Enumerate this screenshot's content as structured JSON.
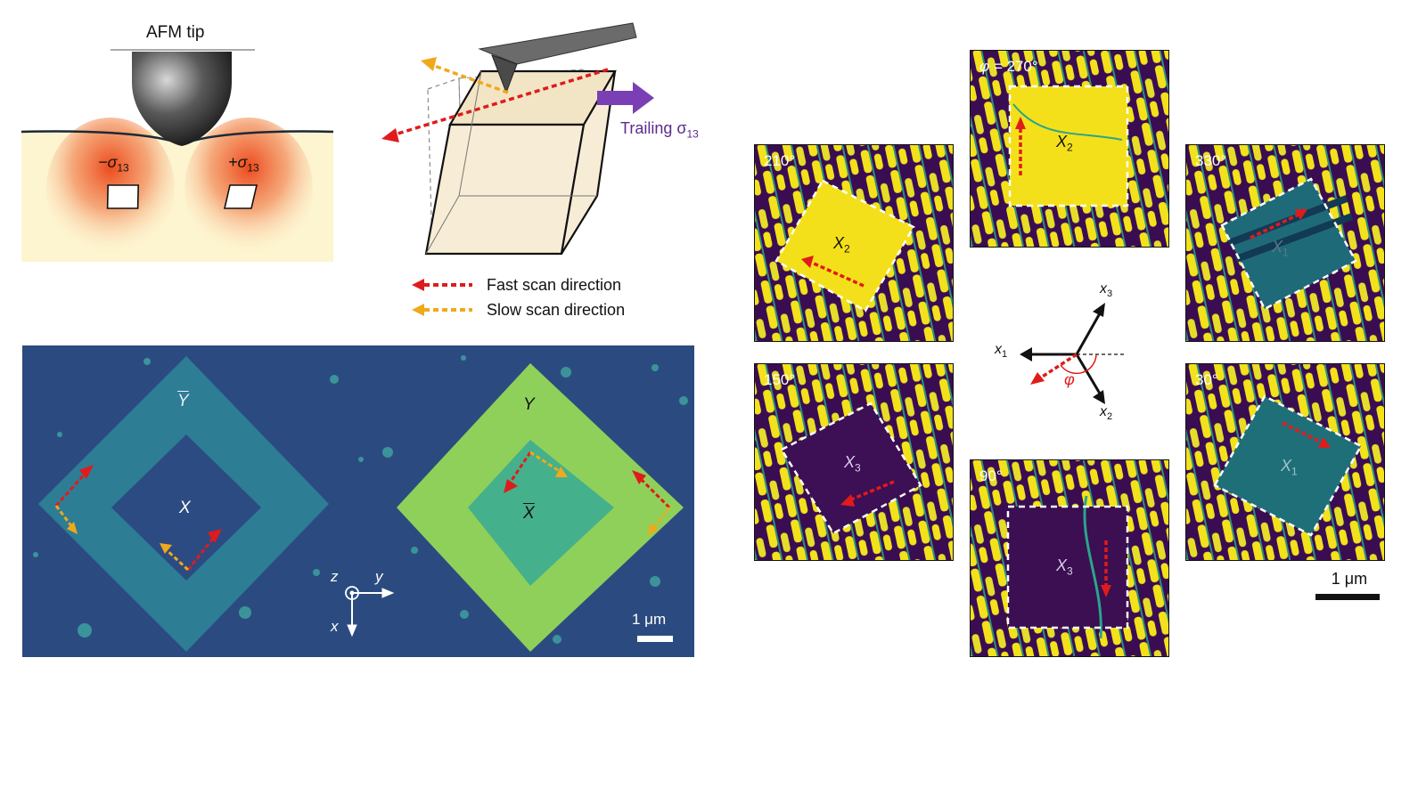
{
  "panel_a": {
    "tip_label": "AFM tip",
    "minus_label": "−σ",
    "minus_sub": "13",
    "plus_label": "+σ",
    "plus_sub": "13"
  },
  "panel_b": {
    "trailing_label": "Trailing σ",
    "trailing_sub": "13",
    "legend": [
      {
        "label": "Fast scan direction",
        "color": "#e01b1b"
      },
      {
        "label": "Slow scan direction",
        "color": "#f0a91a"
      }
    ]
  },
  "panel_c": {
    "labels": {
      "ybar": "Y",
      "x": "X",
      "y": "Y",
      "xbar": "X"
    },
    "axes": {
      "z": "z",
      "y": "y",
      "x": "x"
    },
    "scalebar": "1 μm"
  },
  "panel_d": {
    "tiles": [
      {
        "angle_prefix": "φ = ",
        "angle": "270°",
        "domain": "X",
        "domain_sub": "2"
      },
      {
        "angle_prefix": "",
        "angle": "210°",
        "domain": "X",
        "domain_sub": "2"
      },
      {
        "angle_prefix": "",
        "angle": "330°",
        "domain": "X",
        "domain_sub": "1"
      },
      {
        "angle_prefix": "",
        "angle": "150°",
        "domain": "X",
        "domain_sub": "3"
      },
      {
        "angle_prefix": "",
        "angle": "30°",
        "domain": "X",
        "domain_sub": "1"
      },
      {
        "angle_prefix": "",
        "angle": "90°",
        "domain": "X",
        "domain_sub": "3"
      }
    ],
    "axes": {
      "x1": "x",
      "x1_sub": "1",
      "x2": "x",
      "x2_sub": "2",
      "x3": "x",
      "x3_sub": "3",
      "phi": "φ"
    },
    "scalebar": "1 μm"
  },
  "colors": {
    "fast": "#e01b1b",
    "slow": "#f0a91a",
    "trailing": "#7b3fb5",
    "pfm_yellow": "#f6e11a",
    "pfm_purple": "#3b0f52",
    "pfm_green": "#2aa58a"
  }
}
